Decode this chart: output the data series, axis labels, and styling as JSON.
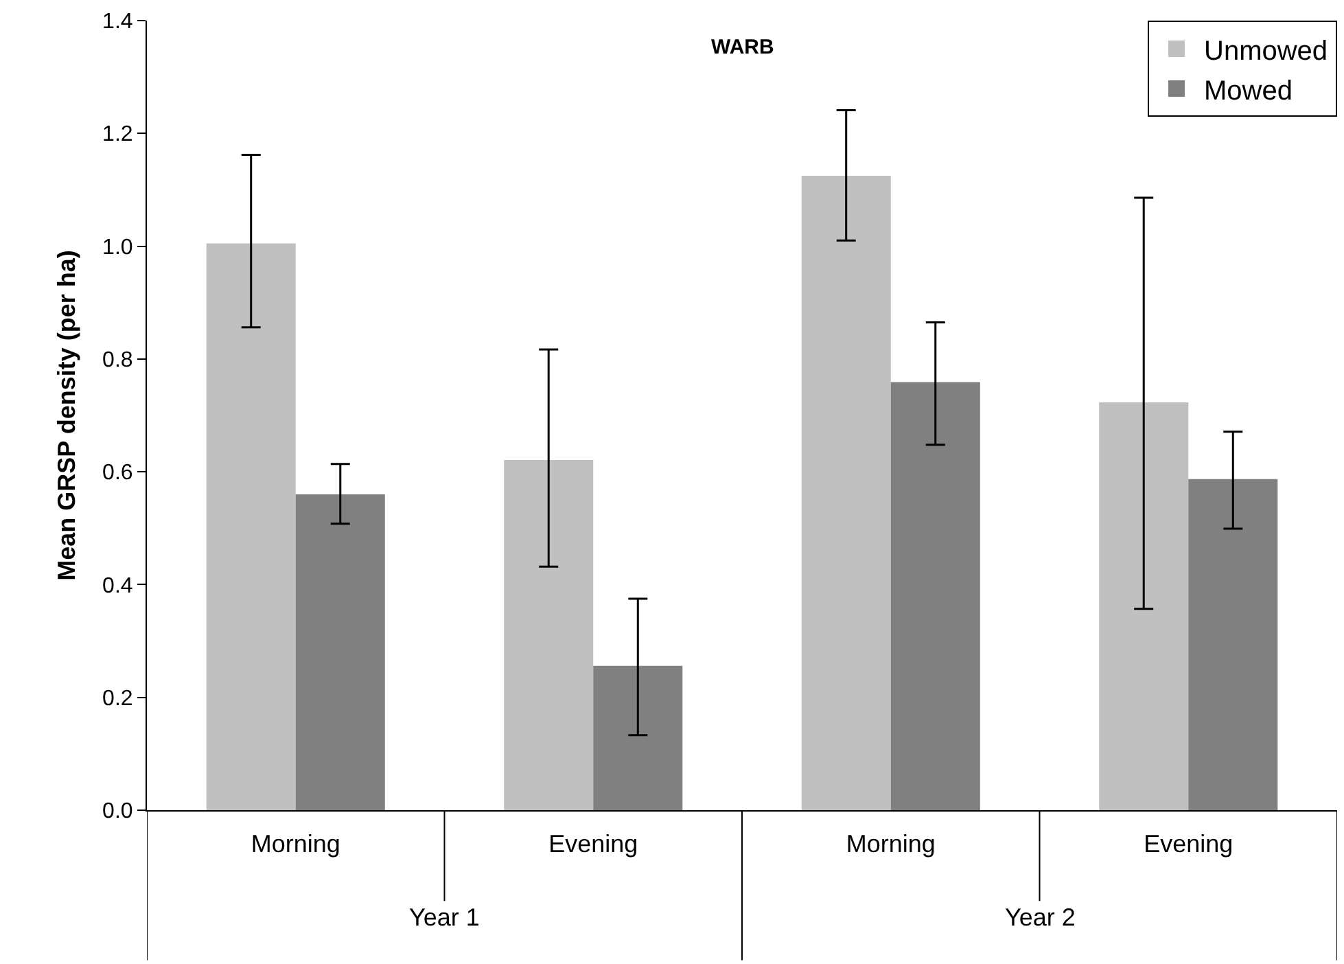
{
  "chart_data": {
    "type": "bar",
    "title": "WARB",
    "ylabel": "Mean GRSP density (per ha)",
    "categories": [
      "Morning",
      "Evening",
      "Morning",
      "Evening"
    ],
    "series": [
      {
        "name": "Unmowed",
        "color": "#c0c0c0",
        "values": [
          1.005,
          0.621,
          1.125,
          0.723
        ],
        "errors": [
          [
            0.856,
            1.162
          ],
          [
            0.432,
            0.817
          ],
          [
            1.01,
            1.241
          ],
          [
            0.357,
            1.086
          ]
        ]
      },
      {
        "name": "Mowed",
        "color": "#808080",
        "values": [
          0.56,
          0.256,
          0.759,
          0.587
        ],
        "errors": [
          [
            0.508,
            0.614
          ],
          [
            0.133,
            0.375
          ],
          [
            0.648,
            0.865
          ],
          [
            0.499,
            0.671
          ]
        ]
      }
    ],
    "annotations": [
      "Year 1",
      "Year 2"
    ],
    "ylim": [
      0,
      1.4
    ],
    "yticks": [
      {
        "value": 0,
        "label": "0.0"
      },
      0.2,
      0.4,
      0.6,
      0.8,
      {
        "value": 1,
        "label": "1.0"
      },
      1.2,
      1.4
    ],
    "legend": "top right"
  }
}
